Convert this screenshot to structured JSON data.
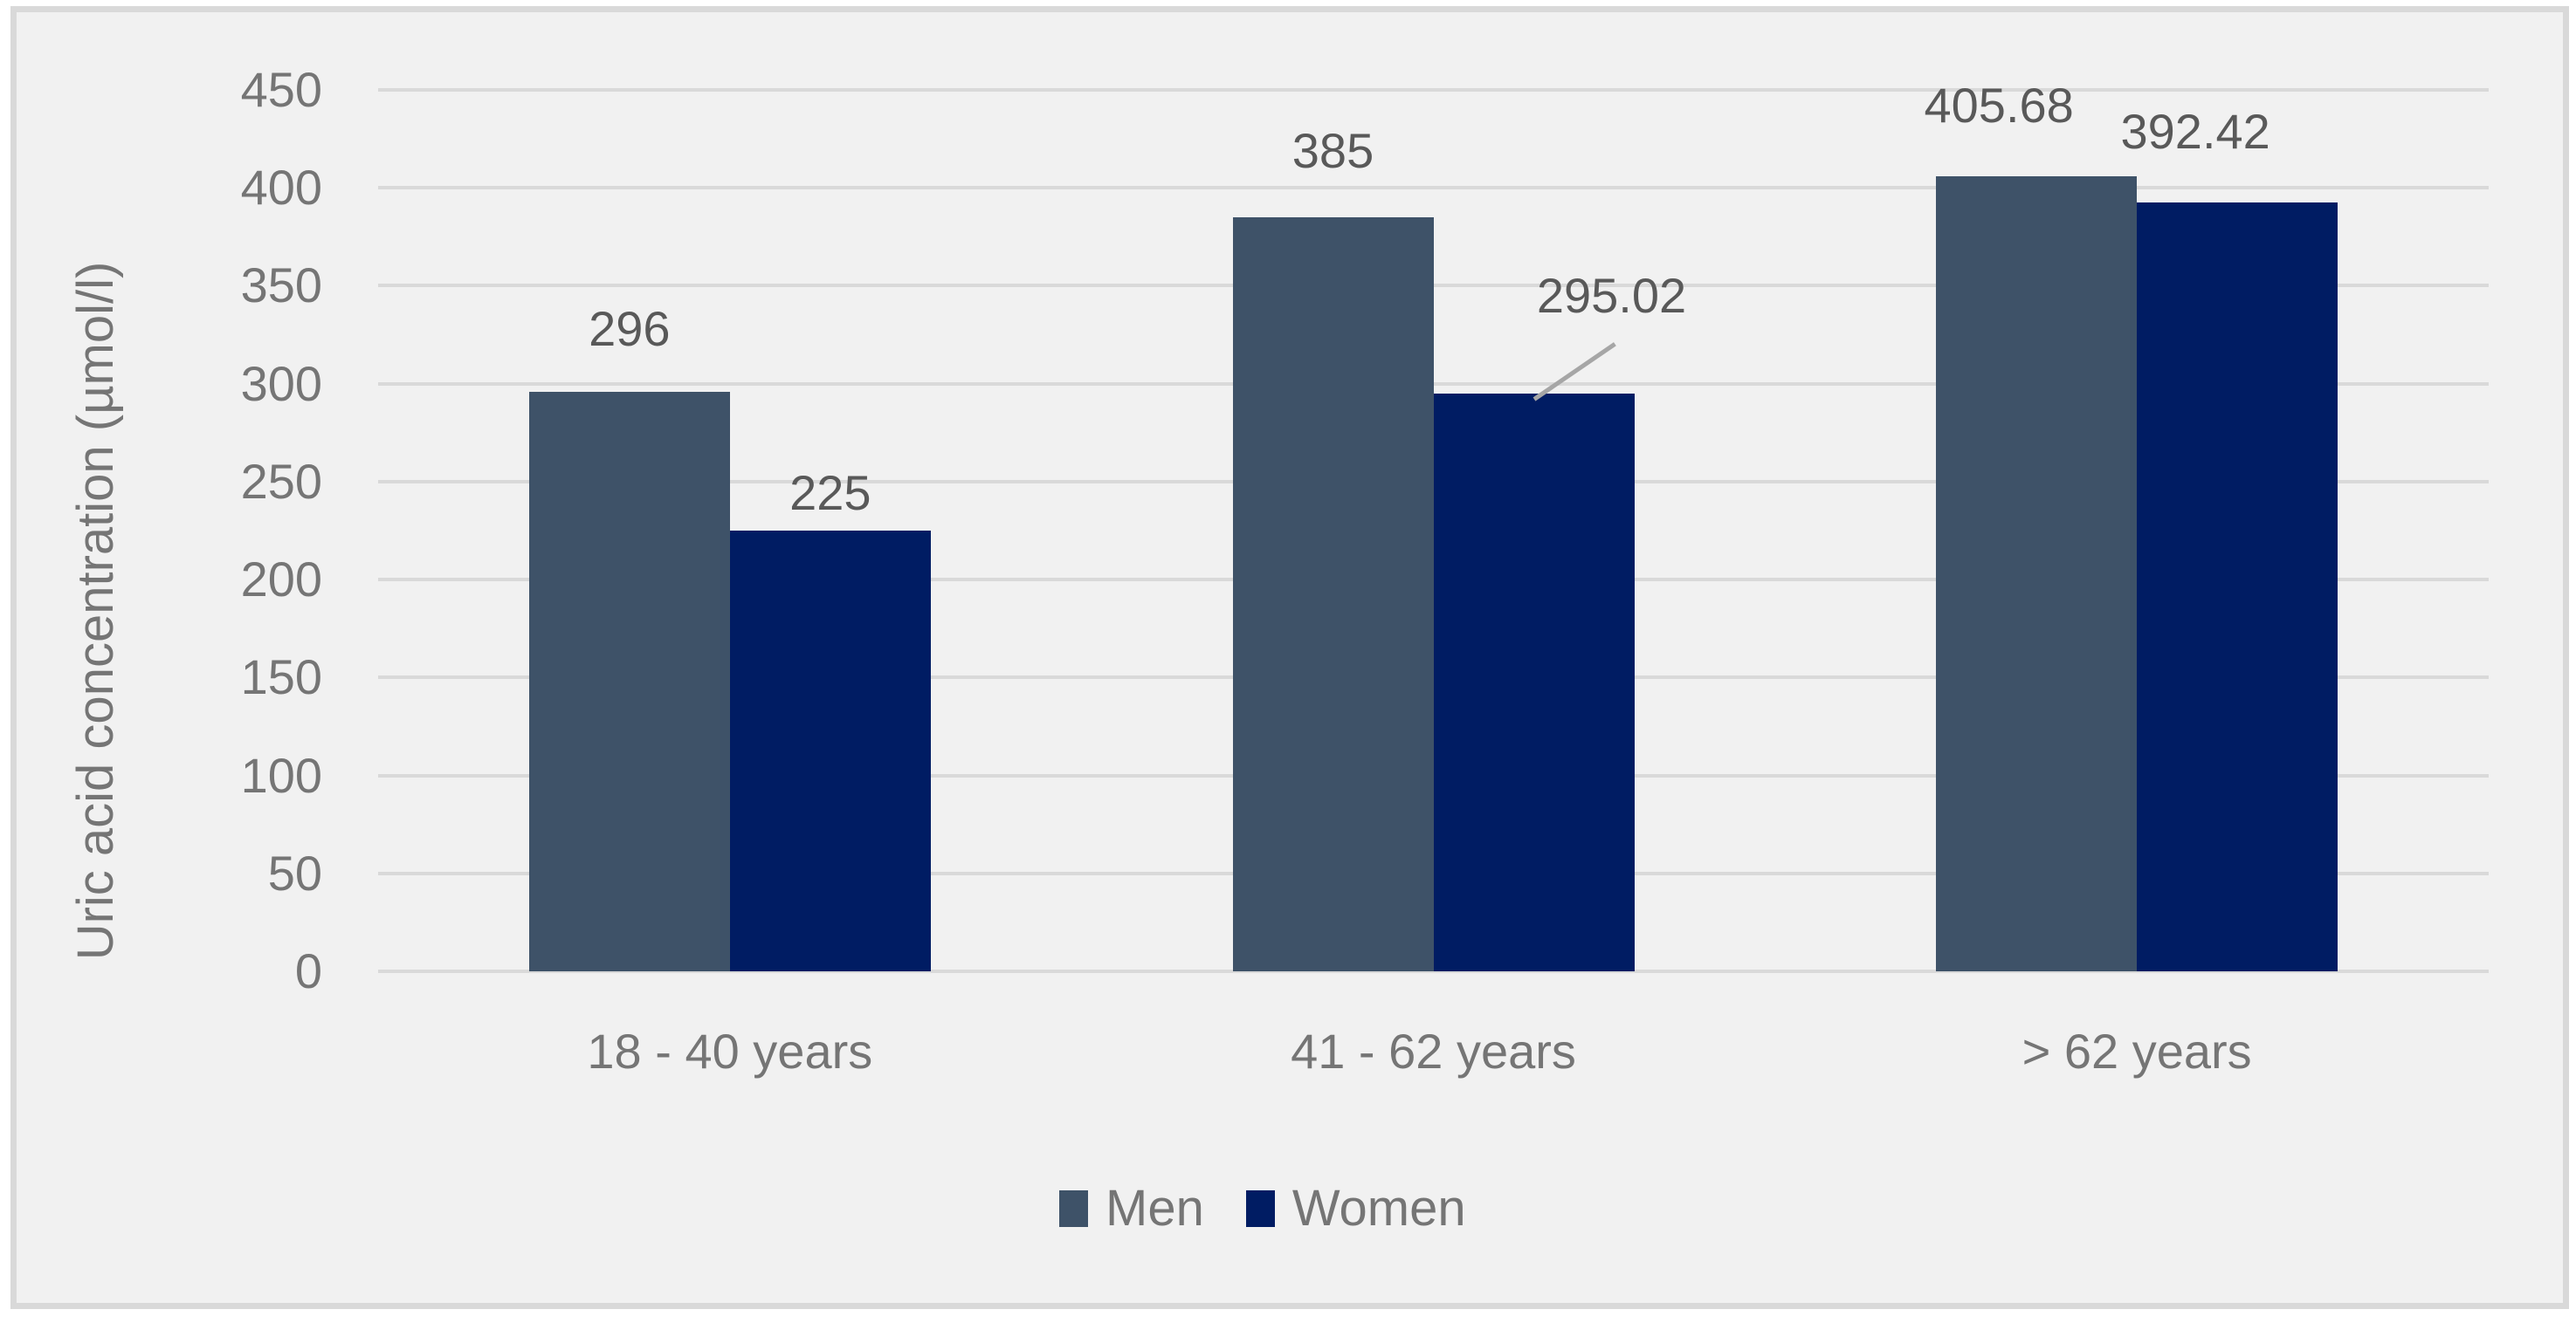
{
  "chart_data": {
    "type": "bar",
    "title": "",
    "xlabel": "",
    "ylabel": "Uric acid concentration (µmol/l)",
    "categories": [
      "18 - 40 years",
      "41 - 62 years",
      "> 62 years"
    ],
    "series": [
      {
        "name": "Men",
        "color": "#3E5268",
        "values": [
          296,
          385,
          405.68
        ],
        "data_labels": [
          "296",
          "385",
          "405.68"
        ]
      },
      {
        "name": "Women",
        "color": "#001C63",
        "values": [
          225,
          295.02,
          392.42
        ],
        "data_labels": [
          "225",
          "295.02",
          "392.42"
        ]
      }
    ],
    "y_axis": {
      "min": 0,
      "max": 450,
      "step": 50,
      "ticks": [
        "0",
        "50",
        "100",
        "150",
        "200",
        "250",
        "300",
        "350",
        "400",
        "450"
      ]
    },
    "grid": true,
    "legend_position": "bottom",
    "annotation": {
      "series": 1,
      "point": 1,
      "leader_line": true
    },
    "colors": {
      "background": "#F1F1F1",
      "frame_border": "#D9D9D9",
      "gridline": "#D9D9D9",
      "axis_text": "#757575",
      "data_label_text": "#595959",
      "leader_line": "#A6A6A6"
    }
  }
}
